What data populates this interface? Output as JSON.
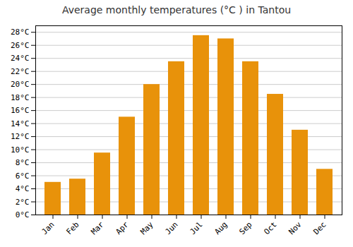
{
  "chart_data": {
    "type": "bar",
    "title": "Average monthly temperatures (°C ) in Tantou",
    "categories": [
      "Jan",
      "Feb",
      "Mar",
      "Apr",
      "May",
      "Jun",
      "Jul",
      "Aug",
      "Sep",
      "Oct",
      "Nov",
      "Dec"
    ],
    "values": [
      5.0,
      5.5,
      9.5,
      15.0,
      20.0,
      23.5,
      27.5,
      27.0,
      23.5,
      18.5,
      13.0,
      7.0
    ],
    "color": "#E8920A",
    "ylim": [
      0,
      29
    ],
    "yticks": [
      {
        "value": 0,
        "label": "0°C"
      },
      {
        "value": 2,
        "label": "2°C"
      },
      {
        "value": 4,
        "label": "4°C"
      },
      {
        "value": 6,
        "label": "6°C"
      },
      {
        "value": 8,
        "label": "8°C"
      },
      {
        "value": 10,
        "label": "10°C"
      },
      {
        "value": 12,
        "label": "12°C"
      },
      {
        "value": 14,
        "label": "14°C"
      },
      {
        "value": 16,
        "label": "16°C"
      },
      {
        "value": 18,
        "label": "18°C"
      },
      {
        "value": 20,
        "label": "20°C"
      },
      {
        "value": 22,
        "label": "22°C"
      },
      {
        "value": 24,
        "label": "24°C"
      },
      {
        "value": 26,
        "label": "26°C"
      },
      {
        "value": 28,
        "label": "28°C"
      }
    ],
    "grid": true
  }
}
